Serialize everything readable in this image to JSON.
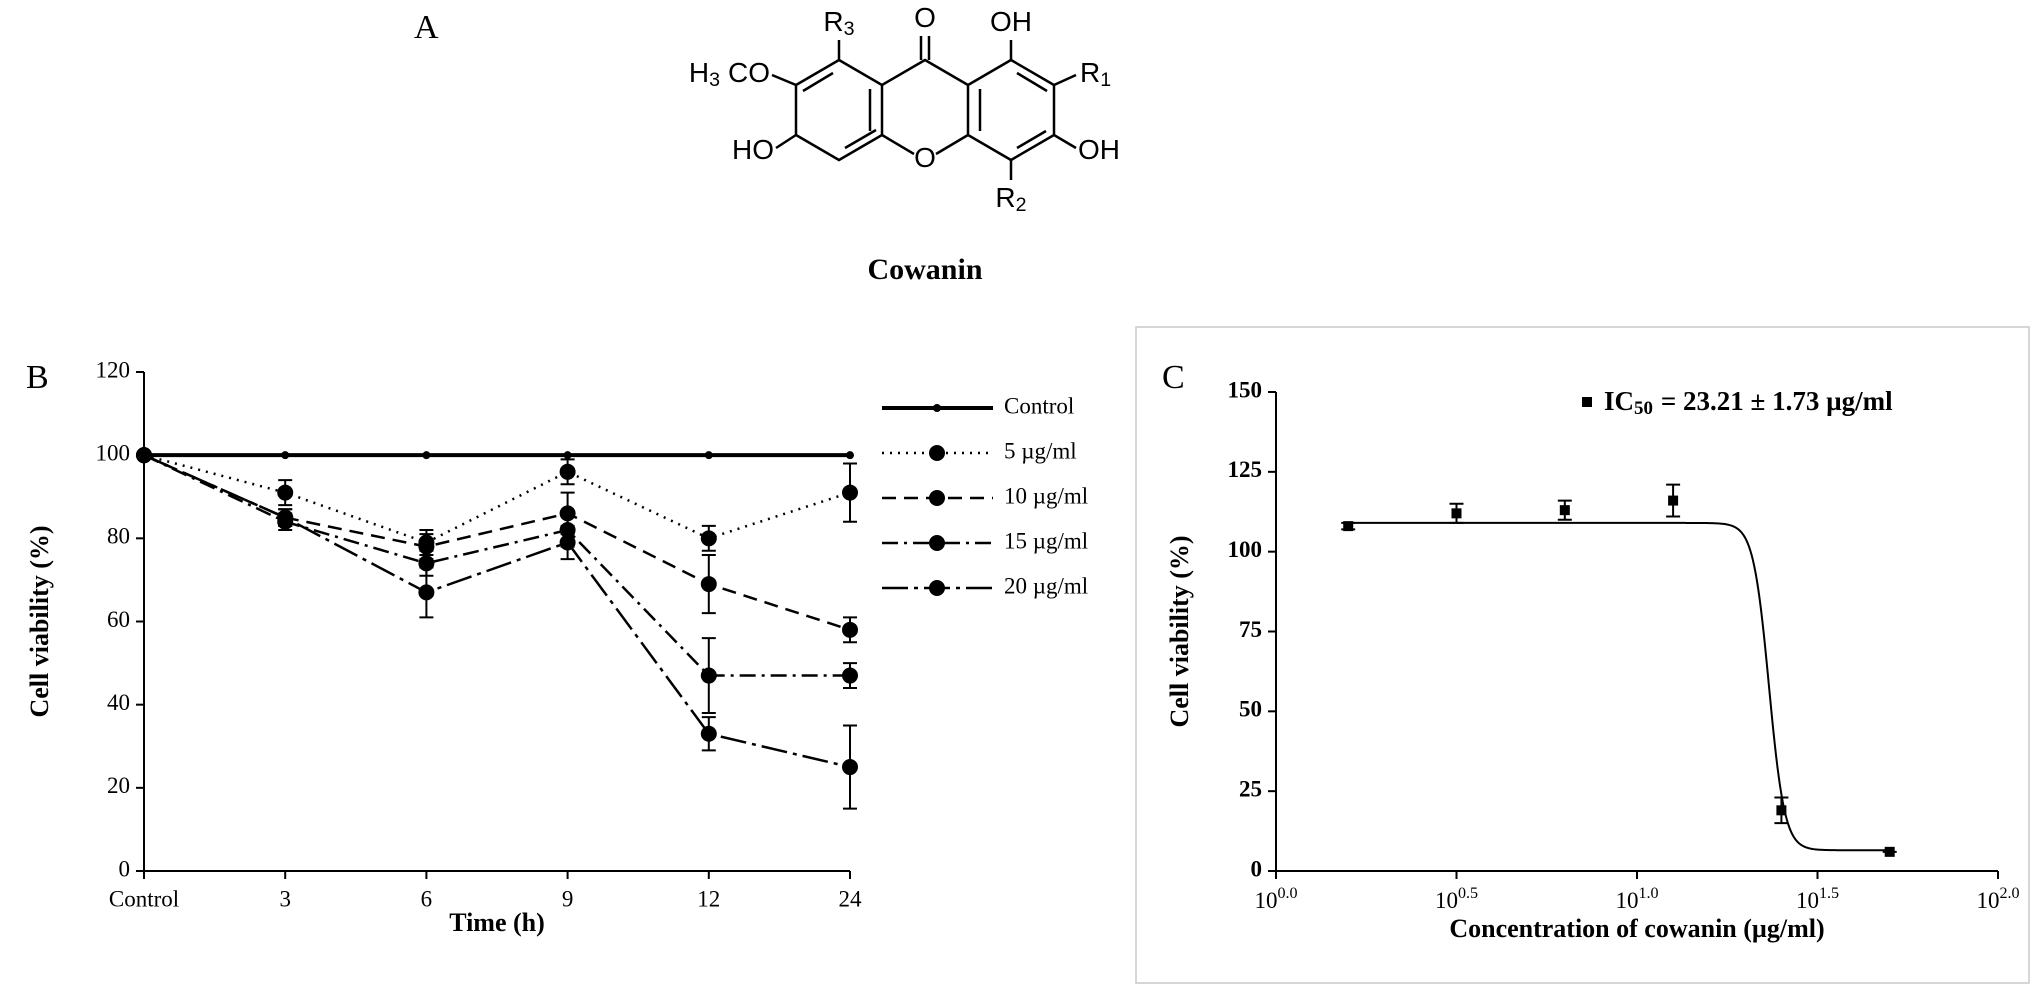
{
  "panels": {
    "a": "A",
    "b": "B",
    "c": "C"
  },
  "structure": {
    "name": "Cowanin",
    "atoms": [
      [
        "H",
        "3",
        "CO"
      ],
      [
        "R",
        "3"
      ],
      [
        "O"
      ],
      [
        "OH"
      ],
      [
        "R",
        "1"
      ],
      [
        "HO"
      ],
      [
        "O"
      ],
      [
        "OH"
      ],
      [
        "R",
        "2"
      ]
    ]
  },
  "chart_data": [
    {
      "type": "line",
      "xlabel": "Time (h)",
      "ylabel": "Cell viability (%)",
      "categories": [
        "Control",
        "3",
        "6",
        "9",
        "12",
        "24"
      ],
      "ylim": [
        0,
        120
      ],
      "yticks": [
        0,
        20,
        40,
        60,
        80,
        100,
        120
      ],
      "legend": "right",
      "series": [
        {
          "name": "Control",
          "color": "#000000",
          "style": "solid",
          "linewidth": 4,
          "marker_size": 4,
          "values": [
            100,
            100,
            100,
            100,
            100,
            100
          ]
        },
        {
          "name": "5 µg/ml",
          "color": "#000000",
          "style": "dotted",
          "linewidth": 2.5,
          "marker_size": 8,
          "values": [
            100,
            91,
            79,
            96,
            80,
            91
          ],
          "errors": [
            null,
            3,
            3,
            3,
            3,
            7
          ]
        },
        {
          "name": "10 µg/ml",
          "color": "#000000",
          "style": "dashed",
          "linewidth": 2.5,
          "marker_size": 8,
          "values": [
            100,
            85,
            78,
            86,
            69,
            58
          ],
          "errors": [
            null,
            2,
            3,
            5,
            7,
            3
          ]
        },
        {
          "name": "15 µg/ml",
          "color": "#000000",
          "style": "dashdot",
          "linewidth": 2.5,
          "marker_size": 8,
          "values": [
            100,
            84,
            74,
            82,
            47,
            47
          ],
          "errors": [
            null,
            2,
            3,
            4,
            9,
            3
          ]
        },
        {
          "name": "20 µg/ml",
          "color": "#000000",
          "style": "longdashdot",
          "linewidth": 2.5,
          "marker_size": 8,
          "values": [
            100,
            85,
            67,
            79,
            33,
            25
          ],
          "errors": [
            null,
            2,
            6,
            4,
            4,
            10
          ]
        }
      ]
    },
    {
      "type": "scatter",
      "xlabel": "Concentration of cowanin (µg/ml)",
      "ylabel": "Cell viability (%)",
      "xscale": "log",
      "xlim": [
        1,
        100
      ],
      "xticks": [
        {
          "value": 1,
          "label": [
            "10",
            "0.0"
          ]
        },
        {
          "value": 3.1623,
          "label": [
            "10",
            "0.5"
          ]
        },
        {
          "value": 10,
          "label": [
            "10",
            "1.0"
          ]
        },
        {
          "value": 31.623,
          "label": [
            "10",
            "1.5"
          ]
        },
        {
          "value": 100,
          "label": [
            "10",
            "2.0"
          ]
        }
      ],
      "ylim": [
        0,
        150
      ],
      "yticks": [
        0,
        25,
        50,
        75,
        100,
        125,
        150
      ],
      "legend": "top",
      "series": [
        {
          "name": [
            "IC",
            "50",
            "= 23.21 ± 1.73 µg/ml"
          ],
          "color": "#000000",
          "x": [
            1.585,
            3.162,
            6.31,
            12.59,
            25.12,
            50.12
          ],
          "values": [
            108,
            112,
            113,
            116,
            19,
            6
          ],
          "errors": [
            1,
            3,
            3,
            5,
            4,
            0
          ]
        }
      ],
      "fit": {
        "top": 109,
        "bottom": 6.5,
        "ic50": 23.21,
        "hill": 20
      }
    }
  ]
}
